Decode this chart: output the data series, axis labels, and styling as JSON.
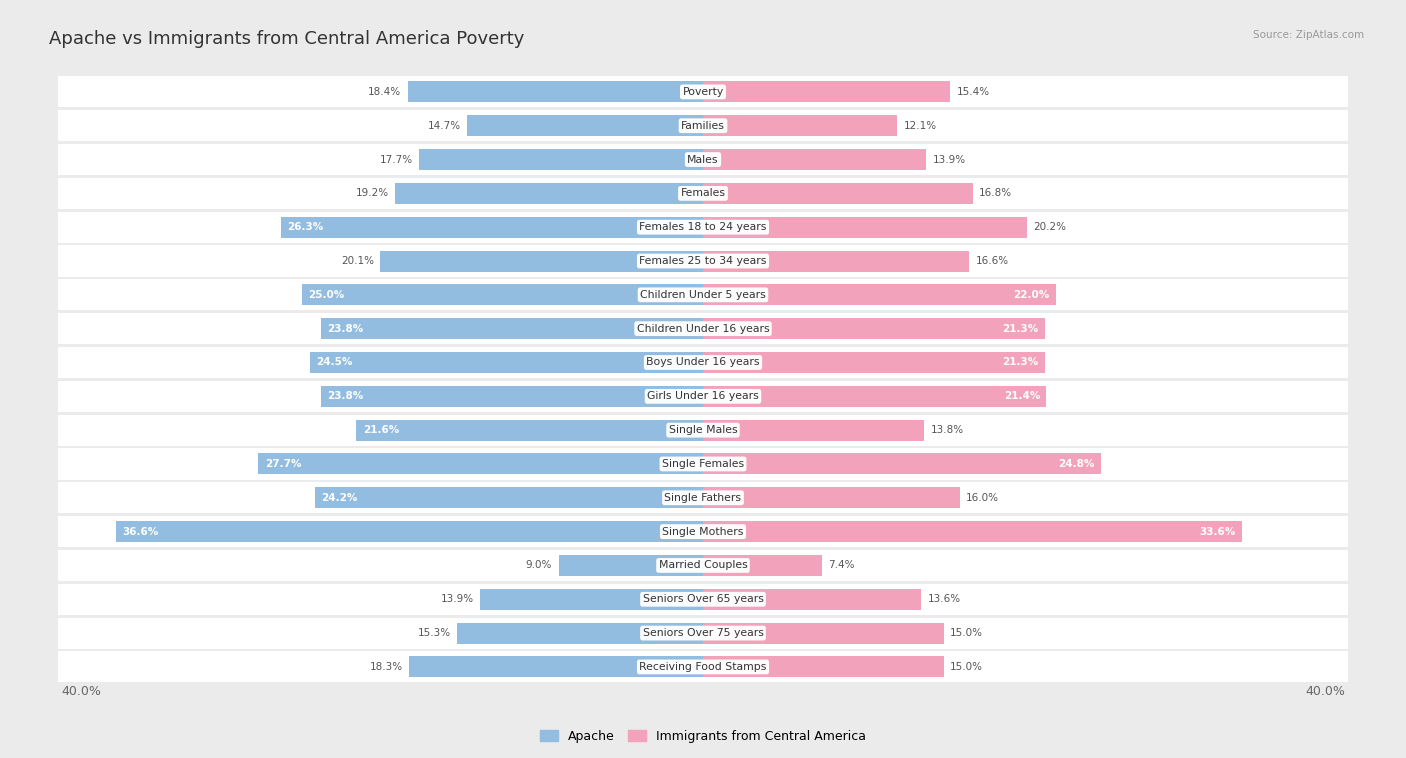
{
  "title": "Apache vs Immigrants from Central America Poverty",
  "source": "Source: ZipAtlas.com",
  "categories": [
    "Poverty",
    "Families",
    "Males",
    "Females",
    "Females 18 to 24 years",
    "Females 25 to 34 years",
    "Children Under 5 years",
    "Children Under 16 years",
    "Boys Under 16 years",
    "Girls Under 16 years",
    "Single Males",
    "Single Females",
    "Single Fathers",
    "Single Mothers",
    "Married Couples",
    "Seniors Over 65 years",
    "Seniors Over 75 years",
    "Receiving Food Stamps"
  ],
  "apache_values": [
    18.4,
    14.7,
    17.7,
    19.2,
    26.3,
    20.1,
    25.0,
    23.8,
    24.5,
    23.8,
    21.6,
    27.7,
    24.2,
    36.6,
    9.0,
    13.9,
    15.3,
    18.3
  ],
  "immigrant_values": [
    15.4,
    12.1,
    13.9,
    16.8,
    20.2,
    16.6,
    22.0,
    21.3,
    21.3,
    21.4,
    13.8,
    24.8,
    16.0,
    33.6,
    7.4,
    13.6,
    15.0,
    15.0
  ],
  "apache_color": "#92bce0",
  "immigrant_color": "#f2a3bb",
  "apache_label": "Apache",
  "immigrant_label": "Immigrants from Central America",
  "max_value": 40.0,
  "background_color": "#ebebeb",
  "row_bg_color": "#ffffff",
  "text_dark": "#555555",
  "text_white": "#ffffff",
  "white_label_threshold_apache": 21.0,
  "white_label_threshold_immigrant": 21.0,
  "title_fontsize": 13,
  "label_fontsize": 7.8,
  "value_fontsize": 7.5,
  "axis_label_fontsize": 9
}
